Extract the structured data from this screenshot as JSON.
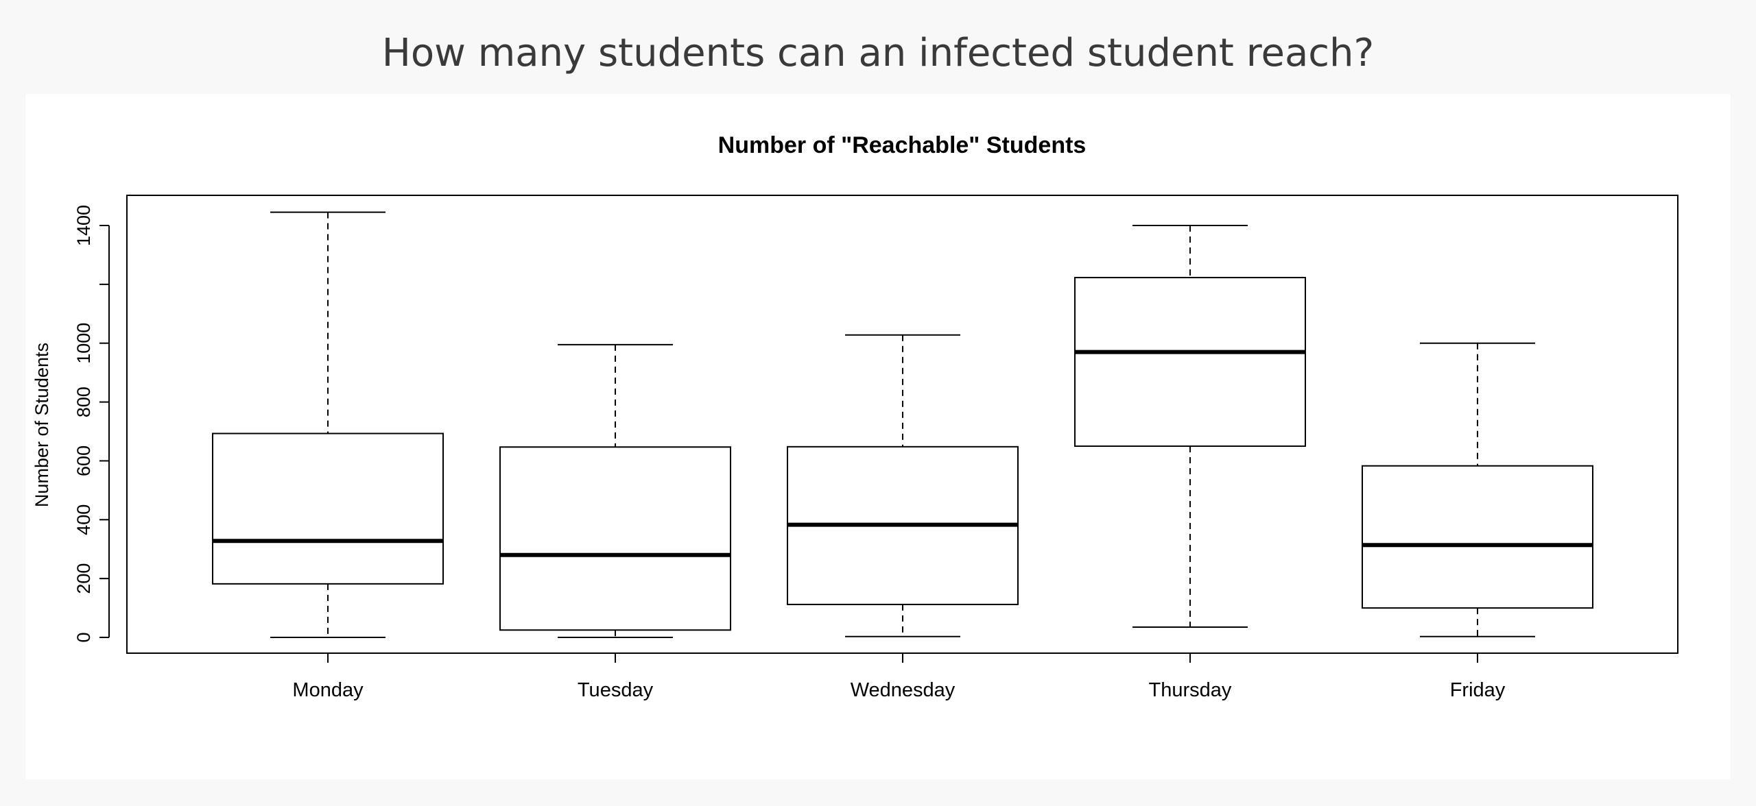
{
  "page": {
    "title": "How many students can an infected student reach?"
  },
  "chart_data": {
    "type": "boxplot",
    "title": "Number of \"Reachable\" Students",
    "xlabel": "",
    "ylabel": "Number of Students",
    "categories": [
      "Monday",
      "Tuesday",
      "Wednesday",
      "Thursday",
      "Friday"
    ],
    "boxes": [
      {
        "category": "Monday",
        "min": 0,
        "q1": 182,
        "median": 328,
        "q3": 693,
        "max": 1445
      },
      {
        "category": "Tuesday",
        "min": 0,
        "q1": 25,
        "median": 280,
        "q3": 647,
        "max": 995
      },
      {
        "category": "Wednesday",
        "min": 3,
        "q1": 112,
        "median": 383,
        "q3": 648,
        "max": 1028
      },
      {
        "category": "Thursday",
        "min": 35,
        "q1": 650,
        "median": 970,
        "q3": 1223,
        "max": 1400
      },
      {
        "category": "Friday",
        "min": 3,
        "q1": 100,
        "median": 314,
        "q3": 583,
        "max": 1000
      }
    ],
    "yticks": [
      0,
      200,
      400,
      600,
      800,
      1000,
      1200,
      1400
    ],
    "ytick_labels": [
      "0",
      "200",
      "400",
      "600",
      "800",
      "1000",
      "",
      "1400"
    ],
    "ylim": [
      -55,
      1500
    ],
    "grid": false
  }
}
